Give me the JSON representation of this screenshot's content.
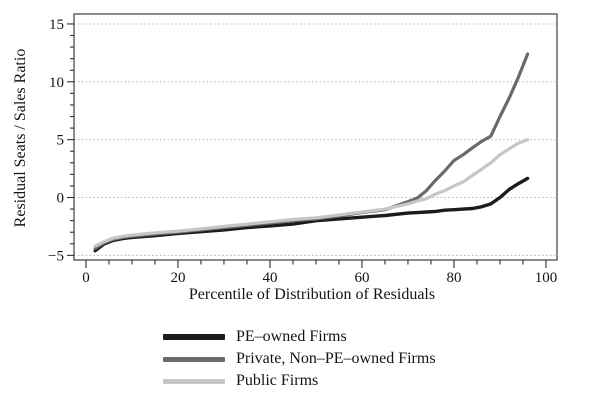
{
  "chart_data": {
    "type": "line",
    "title": "",
    "xlabel": "Percentile of Distribution of Residuals",
    "ylabel": "Residual Seats / Sales Ratio",
    "xlim": [
      -2.6,
      102.4
    ],
    "ylim": [
      -5.4,
      15.86
    ],
    "x_ticks": [
      {
        "v": 0,
        "label": "0"
      },
      {
        "v": 20,
        "label": "20"
      },
      {
        "v": 40,
        "label": "40"
      },
      {
        "v": 60,
        "label": "60"
      },
      {
        "v": 80,
        "label": "80"
      },
      {
        "v": 100,
        "label": "100"
      }
    ],
    "x_minor_step": 5,
    "y_ticks": [
      {
        "v": -5,
        "label": "−5"
      },
      {
        "v": 0,
        "label": "0"
      },
      {
        "v": 5,
        "label": "5"
      },
      {
        "v": 10,
        "label": "10"
      },
      {
        "v": 15,
        "label": "15"
      }
    ],
    "y_minor_step": 1,
    "grid": {
      "horizontal_at_major_y": true,
      "style": "dotted",
      "color": "#b5b5b5"
    },
    "frame_color": "#3f3f3f",
    "legend_position": "below-left",
    "x": [
      2,
      4,
      6,
      8,
      10,
      15,
      20,
      25,
      30,
      35,
      40,
      45,
      50,
      55,
      60,
      65,
      70,
      72,
      74,
      76,
      78,
      80,
      82,
      84,
      86,
      88,
      90,
      92,
      94,
      96
    ],
    "series": [
      {
        "name": "PE–owned Firms",
        "color": "#1c1c1c",
        "width": 3.4,
        "values": [
          -4.6,
          -4.0,
          -3.7,
          -3.55,
          -3.45,
          -3.3,
          -3.1,
          -2.95,
          -2.8,
          -2.6,
          -2.45,
          -2.3,
          -2.0,
          -1.85,
          -1.7,
          -1.55,
          -1.35,
          -1.3,
          -1.25,
          -1.2,
          -1.1,
          -1.05,
          -1.0,
          -0.95,
          -0.8,
          -0.55,
          0.0,
          0.7,
          1.2,
          1.65
        ]
      },
      {
        "name": "Private, Non–PE–owned Firms",
        "color": "#6a6a6a",
        "width": 3.2,
        "values": [
          -4.4,
          -3.9,
          -3.6,
          -3.45,
          -3.35,
          -3.15,
          -3.0,
          -2.8,
          -2.6,
          -2.4,
          -2.2,
          -2.0,
          -1.85,
          -1.6,
          -1.3,
          -1.05,
          -0.35,
          -0.05,
          0.6,
          1.5,
          2.3,
          3.2,
          3.7,
          4.3,
          4.85,
          5.3,
          7.0,
          8.6,
          10.4,
          12.4
        ]
      },
      {
        "name": "Public Firms",
        "color": "#c6c6c6",
        "width": 3.2,
        "values": [
          -4.2,
          -3.8,
          -3.5,
          -3.35,
          -3.25,
          -3.05,
          -2.9,
          -2.7,
          -2.5,
          -2.3,
          -2.1,
          -1.9,
          -1.75,
          -1.5,
          -1.25,
          -1.0,
          -0.55,
          -0.3,
          -0.1,
          0.3,
          0.6,
          1.0,
          1.35,
          1.9,
          2.45,
          3.0,
          3.7,
          4.2,
          4.7,
          5.0
        ]
      }
    ]
  }
}
